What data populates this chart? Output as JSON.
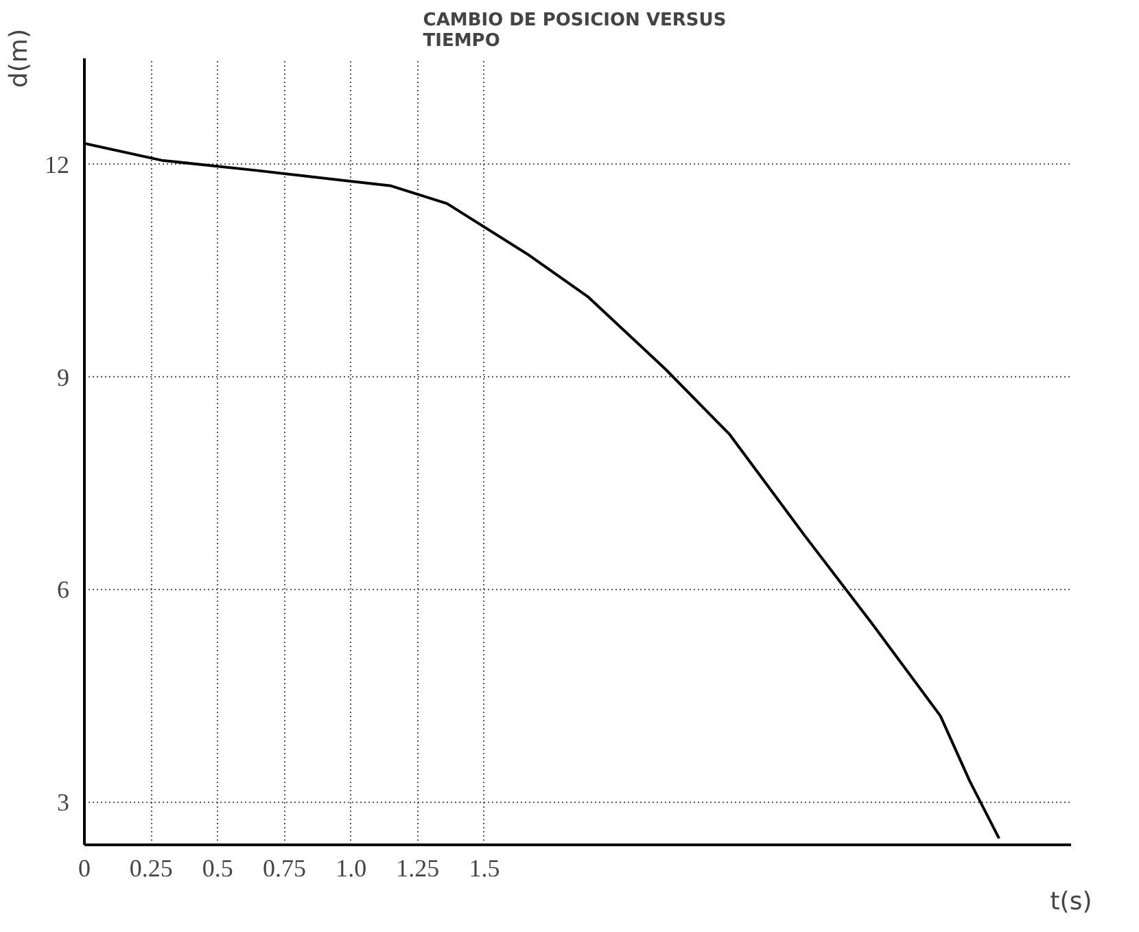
{
  "chart_data": {
    "type": "line",
    "title": "CAMBIO DE POSICION  VERSUS\nTIEMPO",
    "xlabel": "t(s)",
    "ylabel": "d(m)",
    "x": [
      0,
      0.29,
      0.64,
      1.15,
      1.36,
      1.66,
      1.89,
      2.18,
      2.42,
      2.7,
      2.95,
      3.21,
      3.32,
      3.43
    ],
    "series": [
      {
        "color": "#000000",
        "values": [
          12.3,
          12.06,
          11.92,
          11.7,
          11.45,
          10.74,
          10.13,
          9.11,
          8.19,
          6.77,
          5.54,
          4.22,
          3.3,
          2.49
        ]
      }
    ],
    "xlim": [
      0,
      3.7
    ],
    "ylim": [
      2.4,
      13.5
    ],
    "xticks": [
      0,
      {
        "value": 0.25,
        "label": "0.25"
      },
      {
        "value": 0.5,
        "label": "0.5"
      },
      {
        "value": 0.75,
        "label": "0.75"
      },
      {
        "value": 1.0,
        "label": "1.0"
      },
      {
        "value": 1.25,
        "label": "1.25"
      },
      {
        "value": 1.5,
        "label": "1.5"
      }
    ],
    "yticks": [
      3,
      6,
      9,
      12
    ],
    "grid": true,
    "marker": "none",
    "line_style": "solid"
  }
}
